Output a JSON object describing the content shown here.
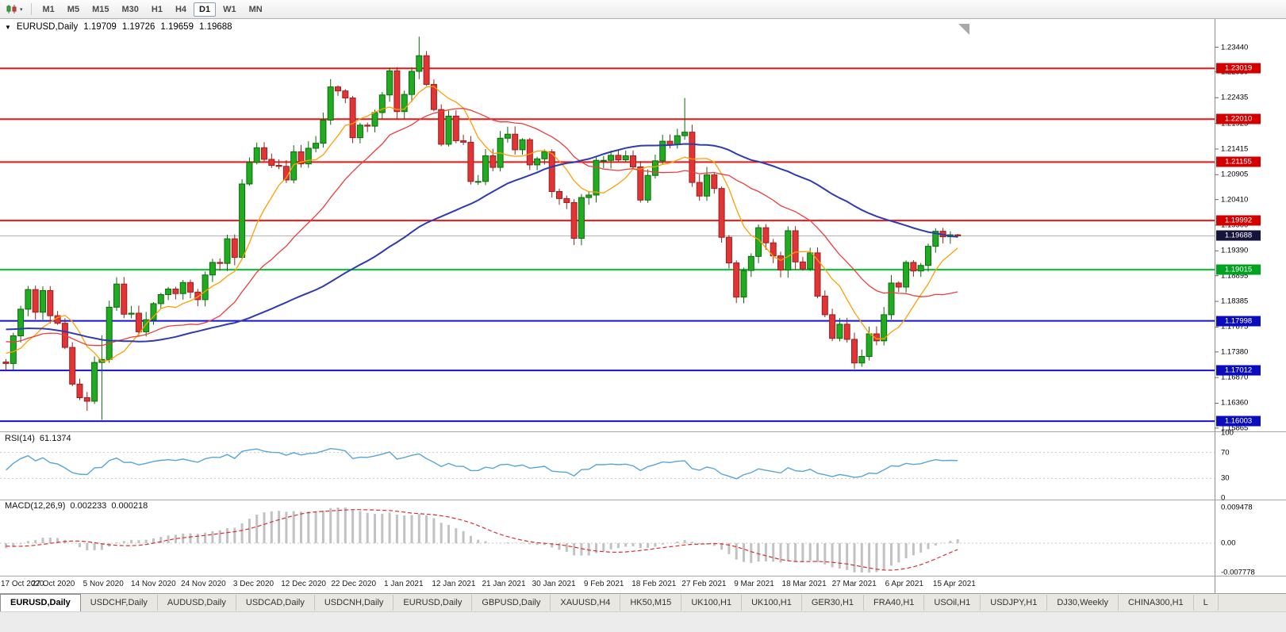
{
  "toolbar": {
    "periods": [
      "M1",
      "M5",
      "M15",
      "M30",
      "H1",
      "H4",
      "D1",
      "W1",
      "MN"
    ],
    "active_period": "D1"
  },
  "icons": {
    "title_marker": "▼",
    "chart_type_caret": "▾"
  },
  "chart": {
    "symbol_title": "EURUSD,Daily",
    "open": "1.19709",
    "high": "1.19726",
    "low": "1.19659",
    "close": "1.19688"
  },
  "style": {
    "candle_up": "#21ab21",
    "candle_up_edge": "#0c6b0c",
    "candle_down": "#e23434",
    "candle_down_edge": "#992020",
    "divider": "#a6a6a6",
    "grid_dotted": "#c9c9c9"
  },
  "main_panel": {
    "price_range": {
      "top": 1.24,
      "bottom": 1.158
    },
    "price_ticks": [
      {
        "label": "1.23440",
        "value": 1.2344
      },
      {
        "label": "1.22950",
        "value": 1.2295
      },
      {
        "label": "1.22435",
        "value": 1.22435
      },
      {
        "label": "1.21925",
        "value": 1.21925
      },
      {
        "label": "1.21415",
        "value": 1.21415
      },
      {
        "label": "1.20905",
        "value": 1.20905
      },
      {
        "label": "1.20410",
        "value": 1.2041
      },
      {
        "label": "1.19900",
        "value": 1.199
      },
      {
        "label": "1.19390",
        "value": 1.1939
      },
      {
        "label": "1.18895",
        "value": 1.18895
      },
      {
        "label": "1.18385",
        "value": 1.18385
      },
      {
        "label": "1.17875",
        "value": 1.17875
      },
      {
        "label": "1.17380",
        "value": 1.1738
      },
      {
        "label": "1.16870",
        "value": 1.1687
      },
      {
        "label": "1.16360",
        "value": 1.1636
      },
      {
        "label": "1.15865",
        "value": 1.15865
      }
    ],
    "hlines": [
      {
        "label": "1.23019",
        "value": 1.23019,
        "color": "#f01515",
        "badge": "#d40000",
        "kind": "resistance"
      },
      {
        "label": "1.22010",
        "value": 1.2201,
        "color": "#f01515",
        "badge": "#d40000",
        "kind": "resistance"
      },
      {
        "label": "1.21155",
        "value": 1.21155,
        "color": "#f01515",
        "badge": "#d40000",
        "kind": "resistance"
      },
      {
        "label": "1.19992",
        "value": 1.19992,
        "color": "#f01515",
        "badge": "#d40000",
        "kind": "resistance"
      },
      {
        "label": "1.19015",
        "value": 1.19015,
        "color": "#00c22b",
        "badge": "#00a31f",
        "kind": "support"
      },
      {
        "label": "1.17998",
        "value": 1.17998,
        "color": "#1414d2",
        "badge": "#0b0bc0",
        "kind": "support"
      },
      {
        "label": "1.17012",
        "value": 1.17012,
        "color": "#1414d2",
        "badge": "#0b0bc0",
        "kind": "support"
      },
      {
        "label": "1.16003",
        "value": 1.16003,
        "color": "#1414d2",
        "badge": "#0b0bc0",
        "kind": "support"
      }
    ],
    "current_price": {
      "label": "1.19688",
      "value": 1.19688,
      "line_color": "#b4b4b4",
      "badge": "#14143c"
    },
    "moving_averages": [
      {
        "period": 8,
        "color": "#ff9f00",
        "width": 1.3
      },
      {
        "period": 21,
        "color": "#f03c3c",
        "width": 1.3
      },
      {
        "period": 55,
        "color": "#2f3bb3",
        "width": 2
      }
    ]
  },
  "rsi_panel": {
    "name": "RSI(14)",
    "value": "61.1374",
    "period": 14,
    "color": "#58a6d8",
    "levels": [
      {
        "label": "100",
        "value": 100
      },
      {
        "label": "70",
        "value": 70
      },
      {
        "label": "30",
        "value": 30
      },
      {
        "label": "0",
        "value": 0
      }
    ]
  },
  "macd_panel": {
    "name": "MACD(12,26,9)",
    "value_main": "0.002233",
    "value_signal": "0.000218",
    "fast": 12,
    "slow": 26,
    "signal": 9,
    "hist_color": "#c2c2c2",
    "signal_color": "#d83030",
    "range": {
      "max": 0.009478,
      "min": -0.007778
    },
    "scale": [
      {
        "label": "0.009478",
        "value": 0.009478
      },
      {
        "label": "0.00",
        "value": 0
      },
      {
        "label": "-0.007778",
        "value": -0.007778
      }
    ]
  },
  "time_axis": {
    "labels": [
      "17 Oct 2020",
      "27 Oct 2020",
      "5 Nov 2020",
      "14 Nov 2020",
      "24 Nov 2020",
      "3 Dec 2020",
      "12 Dec 2020",
      "22 Dec 2020",
      "1 Jan 2021",
      "12 Jan 2021",
      "21 Jan 2021",
      "30 Jan 2021",
      "9 Feb 2021",
      "18 Feb 2021",
      "27 Feb 2021",
      "9 Mar 2021",
      "18 Mar 2021",
      "27 Mar 2021",
      "6 Apr 2021",
      "15 Apr 2021"
    ]
  },
  "chart_data": {
    "type": "candlestick",
    "symbol": "EURUSD",
    "timeframe": "Daily",
    "x_first_label": "17 Oct 2020",
    "x_last_label": "15 Apr 2021",
    "closes": [
      1.1715,
      1.177,
      1.1823,
      1.1862,
      1.1817,
      1.186,
      1.181,
      1.1795,
      1.1747,
      1.1674,
      1.1647,
      1.164,
      1.1717,
      1.1723,
      1.1827,
      1.1873,
      1.1813,
      1.1815,
      1.1778,
      1.1802,
      1.1834,
      1.1852,
      1.1863,
      1.1854,
      1.1876,
      1.1857,
      1.1842,
      1.1891,
      1.1916,
      1.1914,
      1.1963,
      1.1926,
      1.2072,
      1.2115,
      1.2144,
      1.2121,
      1.2109,
      1.2107,
      1.208,
      1.2136,
      1.2112,
      1.2143,
      1.2153,
      1.2199,
      1.2265,
      1.2257,
      1.2243,
      1.2164,
      1.2189,
      1.2187,
      1.2214,
      1.2249,
      1.2297,
      1.2216,
      1.225,
      1.2296,
      1.2327,
      1.227,
      1.222,
      1.2151,
      1.2207,
      1.2158,
      1.2155,
      1.2077,
      1.2077,
      1.2128,
      1.2105,
      1.2163,
      1.2171,
      1.214,
      1.216,
      1.211,
      1.2122,
      1.2136,
      1.2057,
      1.2043,
      1.2035,
      1.1964,
      1.2045,
      1.205,
      1.2119,
      1.2119,
      1.2129,
      1.212,
      1.2128,
      1.2106,
      1.204,
      1.2089,
      1.2118,
      1.2157,
      1.215,
      1.2168,
      1.2175,
      1.2075,
      1.2048,
      1.209,
      1.2063,
      1.1966,
      1.1915,
      1.1847,
      1.19,
      1.1928,
      1.1985,
      1.1955,
      1.1929,
      1.1901,
      1.1979,
      1.1917,
      1.1903,
      1.1935,
      1.1849,
      1.1812,
      1.1765,
      1.1793,
      1.1763,
      1.1716,
      1.1729,
      1.1774,
      1.176,
      1.1812,
      1.1875,
      1.1867,
      1.1916,
      1.1899,
      1.191,
      1.1948,
      1.1978,
      1.1967,
      1.19709,
      1.19688
    ],
    "seed_closes": [
      1.1721,
      1.1745,
      1.178,
      1.1812,
      1.184,
      1.1868,
      1.189,
      1.1905,
      1.1882,
      1.1855,
      1.183,
      1.185,
      1.1872,
      1.1895,
      1.191,
      1.1885,
      1.186,
      1.1832,
      1.181,
      1.1785,
      1.176,
      1.1742,
      1.1718,
      1.169,
      1.1665,
      1.164,
      1.1662,
      1.169,
      1.1715,
      1.174,
      1.1762,
      1.1785,
      1.1808,
      1.183,
      1.1812,
      1.179,
      1.1772,
      1.175,
      1.1735,
      1.176,
      1.1782,
      1.1805,
      1.1828,
      1.181,
      1.1788,
      1.1765,
      1.1742,
      1.172,
      1.1745,
      1.1768,
      1.1742,
      1.1725,
      1.174,
      1.173,
      1.1718
    ],
    "overrides": {
      "11": {
        "l": 1.1621
      },
      "13": {
        "h": 1.1771,
        "l": 1.1603
      },
      "56": {
        "h": 1.2365
      },
      "92": {
        "h": 1.2243
      },
      "115": {
        "l": 1.1704
      },
      "129": {
        "h": 1.19726,
        "l": 1.19659
      }
    }
  },
  "tabs": [
    {
      "label": "EURUSD,Daily",
      "active": true
    },
    {
      "label": "USDCHF,Daily",
      "active": false
    },
    {
      "label": "AUDUSD,Daily",
      "active": false
    },
    {
      "label": "USDCAD,Daily",
      "active": false
    },
    {
      "label": "USDCNH,Daily",
      "active": false
    },
    {
      "label": "EURUSD,Daily",
      "active": false
    },
    {
      "label": "GBPUSD,Daily",
      "active": false
    },
    {
      "label": "XAUUSD,H4",
      "active": false
    },
    {
      "label": "HK50,M15",
      "active": false
    },
    {
      "label": "UK100,H1",
      "active": false
    },
    {
      "label": "UK100,H1",
      "active": false
    },
    {
      "label": "GER30,H1",
      "active": false
    },
    {
      "label": "FRA40,H1",
      "active": false
    },
    {
      "label": "USOil,H1",
      "active": false
    },
    {
      "label": "USDJPY,H1",
      "active": false
    },
    {
      "label": "DJ30,Weekly",
      "active": false
    },
    {
      "label": "CHINA300,H1",
      "active": false
    },
    {
      "label": "L",
      "active": false
    }
  ]
}
